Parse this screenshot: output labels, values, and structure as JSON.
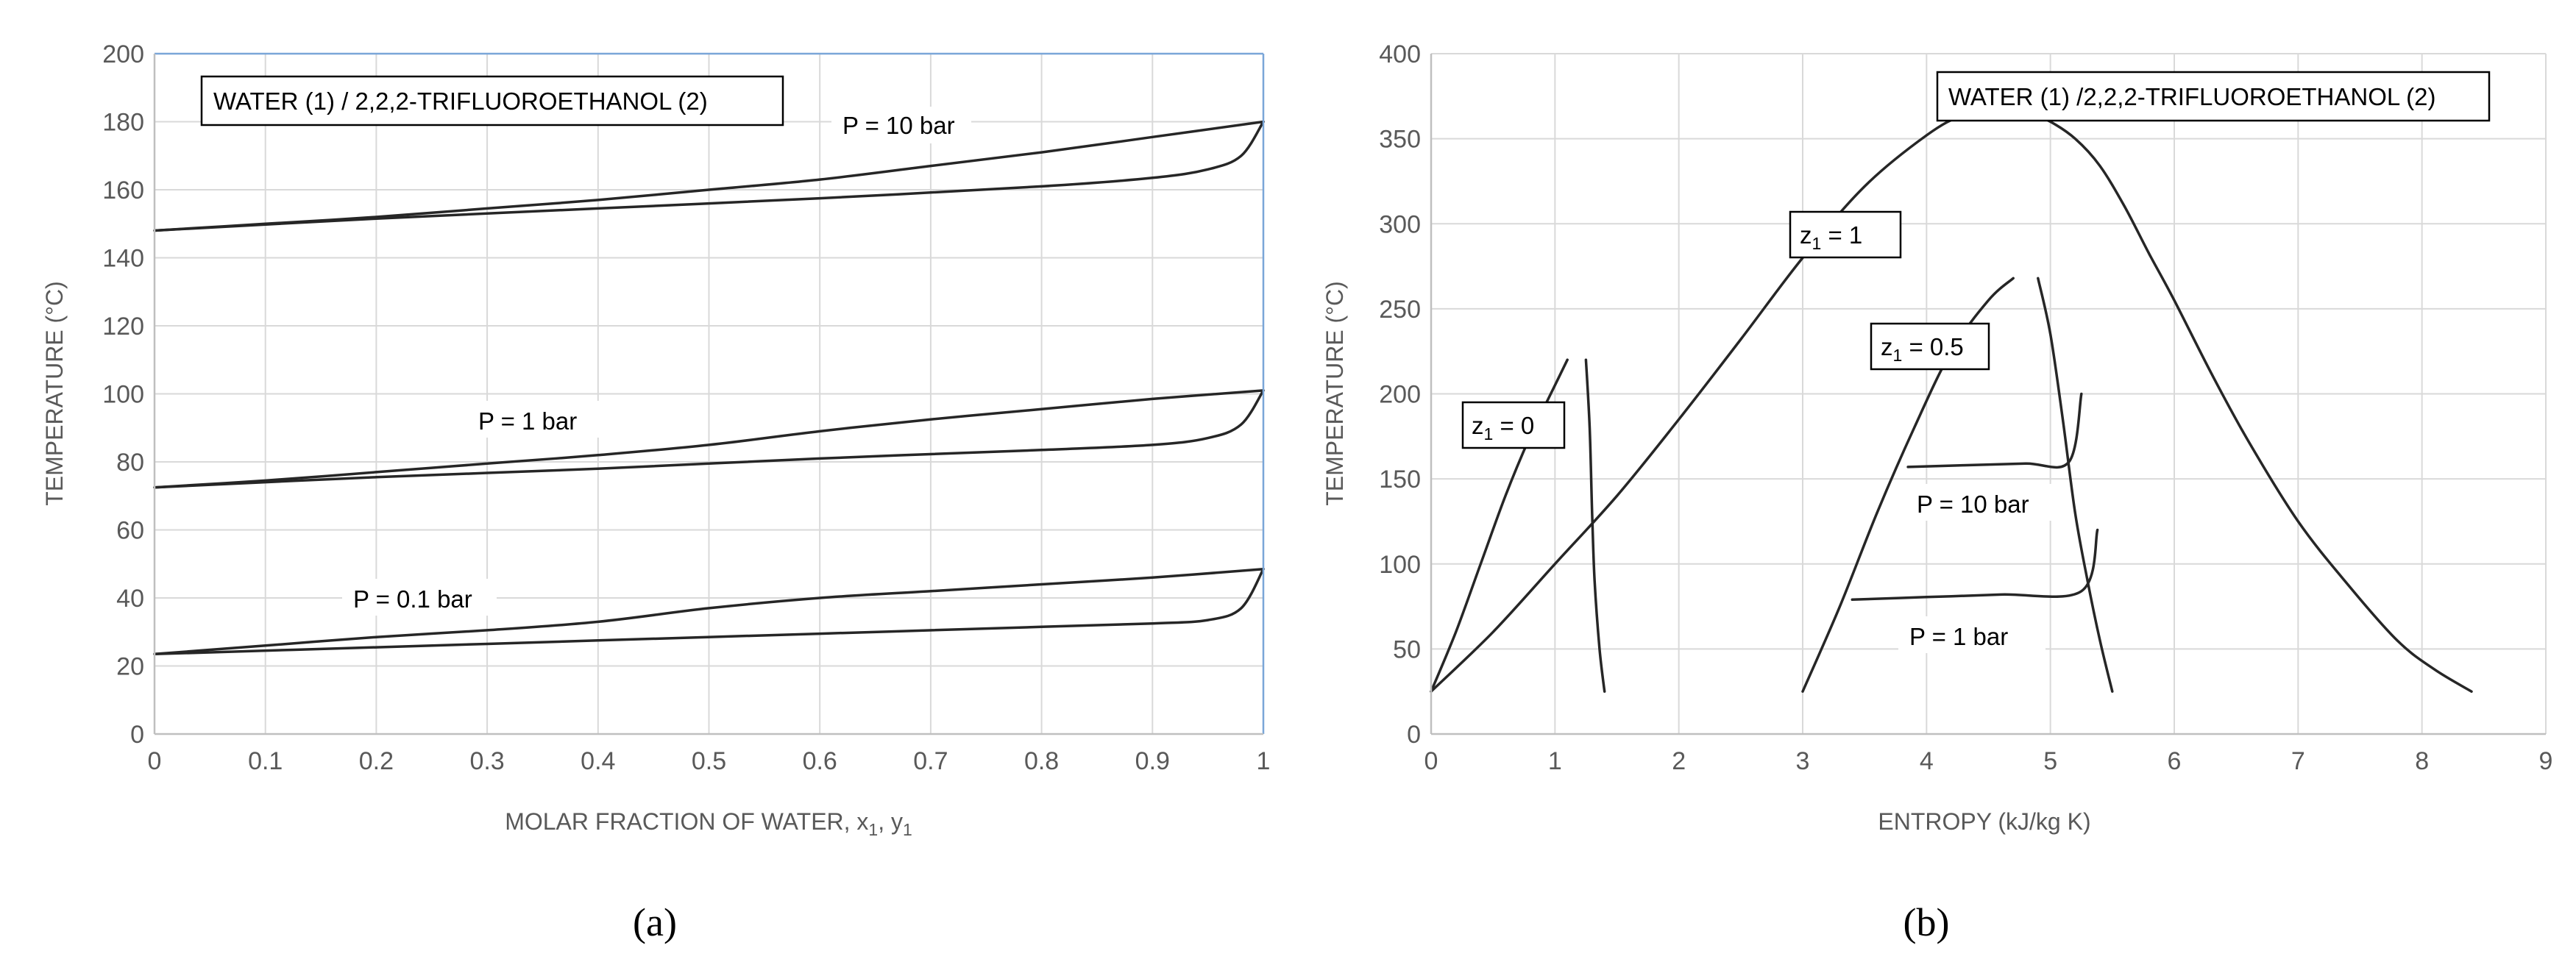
{
  "chart_data": [
    {
      "type": "line",
      "panel_label": "(a)",
      "title": "WATER (1) / 2,2,2-TRIFLUOROETHANOL (2)",
      "xlabel": "MOLAR FRACTION OF WATER, x1, y1",
      "xlabel_parts": [
        "MOLAR FRACTION OF WATER, x",
        "1",
        ", y",
        "1"
      ],
      "ylabel": "TEMPERATURE (°C)",
      "xlim": [
        0,
        1
      ],
      "ylim": [
        0,
        200
      ],
      "xticks": [
        "0",
        "0.1",
        "0.2",
        "0.3",
        "0.4",
        "0.5",
        "0.6",
        "0.7",
        "0.8",
        "0.9",
        "1"
      ],
      "yticks": [
        "0",
        "20",
        "40",
        "60",
        "80",
        "100",
        "120",
        "140",
        "160",
        "180",
        "200"
      ],
      "grid": true,
      "annotations": [
        "P = 10 bar",
        "P = 1 bar",
        "P = 0.1 bar"
      ],
      "series": [
        {
          "group": "P = 10 bar",
          "curve": "dew",
          "x": [
            0,
            0.1,
            0.2,
            0.3,
            0.4,
            0.5,
            0.6,
            0.7,
            0.8,
            0.9,
            1.0
          ],
          "y": [
            148,
            150,
            152,
            154.5,
            157,
            160,
            163,
            167,
            171,
            175.5,
            180
          ]
        },
        {
          "group": "P = 10 bar",
          "curve": "bubble",
          "x": [
            0,
            0.2,
            0.4,
            0.6,
            0.8,
            0.9,
            0.95,
            0.98,
            1.0
          ],
          "y": [
            148,
            151.5,
            154.5,
            157.5,
            161,
            163.5,
            166,
            170,
            180
          ]
        },
        {
          "group": "P = 1 bar",
          "curve": "dew",
          "x": [
            0,
            0.1,
            0.2,
            0.3,
            0.4,
            0.5,
            0.6,
            0.7,
            0.8,
            0.9,
            1.0
          ],
          "y": [
            72.5,
            74.5,
            77,
            79.5,
            82,
            85,
            89,
            92.5,
            95.5,
            98.5,
            101
          ]
        },
        {
          "group": "P = 1 bar",
          "curve": "bubble",
          "x": [
            0,
            0.2,
            0.4,
            0.6,
            0.8,
            0.9,
            0.95,
            0.98,
            1.0
          ],
          "y": [
            72.5,
            75.5,
            78,
            81,
            83.5,
            85,
            87,
            91,
            101
          ]
        },
        {
          "group": "P = 0.1 bar",
          "curve": "dew",
          "x": [
            0,
            0.1,
            0.2,
            0.3,
            0.4,
            0.5,
            0.6,
            0.7,
            0.8,
            0.9,
            1.0
          ],
          "y": [
            23.5,
            26,
            28.5,
            30.5,
            33,
            37,
            40,
            42,
            44,
            46,
            48.5
          ]
        },
        {
          "group": "P = 0.1 bar",
          "curve": "bubble",
          "x": [
            0,
            0.2,
            0.4,
            0.6,
            0.8,
            0.9,
            0.95,
            0.98,
            1.0
          ],
          "y": [
            23.5,
            25.5,
            27.5,
            29.5,
            31.5,
            32.5,
            33.5,
            37,
            48.5
          ]
        }
      ]
    },
    {
      "type": "line",
      "panel_label": "(b)",
      "title": "WATER (1) /2,2,2-TRIFLUOROETHANOL (2)",
      "xlabel": "ENTROPY (kJ/kg K)",
      "ylabel": "TEMPERATURE (°C)",
      "xlim": [
        0,
        9
      ],
      "ylim": [
        0,
        400
      ],
      "xticks": [
        "0",
        "1",
        "2",
        "3",
        "4",
        "5",
        "6",
        "7",
        "8",
        "9"
      ],
      "yticks": [
        "0",
        "50",
        "100",
        "150",
        "200",
        "250",
        "300",
        "350",
        "400"
      ],
      "grid": true,
      "annotations": [
        {
          "main": "z",
          "sub": "1",
          "rest": " = 1"
        },
        {
          "main": "z",
          "sub": "1",
          "rest": " = 0.5"
        },
        {
          "main": "z",
          "sub": "1",
          "rest": " = 0"
        },
        {
          "text": "P = 10 bar"
        },
        {
          "text": "P = 1 bar"
        }
      ],
      "series": [
        {
          "group": "z1 = 1",
          "curve": "saturation dome",
          "x": [
            0,
            0.5,
            1.0,
            1.5,
            2.0,
            2.5,
            3.0,
            3.5,
            4.0,
            4.3,
            4.6,
            4.8,
            5.0,
            5.2,
            5.4,
            5.6,
            5.8,
            6.0,
            6.3,
            6.6,
            7.0,
            7.4,
            7.8,
            8.1,
            8.4
          ],
          "y": [
            25,
            60,
            100,
            140,
            185,
            232,
            280,
            322,
            352,
            364,
            368,
            366,
            360,
            350,
            334,
            310,
            282,
            255,
            212,
            172,
            125,
            88,
            55,
            38,
            25
          ]
        },
        {
          "group": "z1 = 0",
          "curve": "bubble",
          "x": [
            0,
            0.2,
            0.4,
            0.6,
            0.8,
            1.0,
            1.1
          ],
          "y": [
            25,
            60,
            100,
            140,
            175,
            205,
            220
          ]
        },
        {
          "group": "z1 = 0",
          "curve": "dew",
          "x": [
            1.25,
            1.28,
            1.3,
            1.32,
            1.36,
            1.4
          ],
          "y": [
            220,
            180,
            130,
            90,
            50,
            25
          ]
        },
        {
          "group": "z1 = 0.5",
          "curve": "bubble",
          "x": [
            3.0,
            3.3,
            3.6,
            3.9,
            4.2,
            4.5,
            4.7
          ],
          "y": [
            25,
            75,
            130,
            180,
            225,
            255,
            268
          ]
        },
        {
          "group": "z1 = 0.5",
          "curve": "dew",
          "x": [
            4.9,
            5.0,
            5.1,
            5.2,
            5.3,
            5.4,
            5.5
          ],
          "y": [
            268,
            235,
            185,
            130,
            90,
            55,
            25
          ]
        },
        {
          "group": "P = 10 bar",
          "curve": "isobar",
          "x": [
            3.85,
            4.3,
            4.8,
            5.15,
            5.25
          ],
          "y": [
            157,
            158,
            159,
            160,
            200
          ]
        },
        {
          "group": "P = 1 bar",
          "curve": "isobar",
          "x": [
            3.4,
            4.0,
            4.6,
            5.25,
            5.38
          ],
          "y": [
            79,
            80.5,
            82,
            84,
            120
          ]
        }
      ]
    }
  ]
}
